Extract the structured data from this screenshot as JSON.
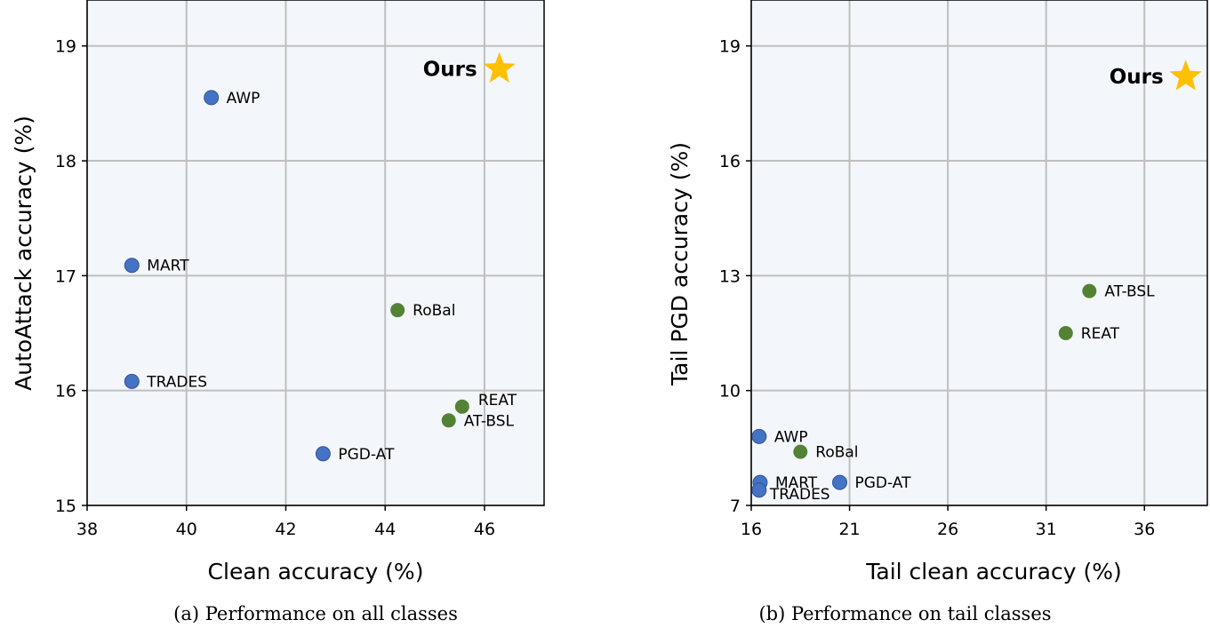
{
  "chart_data": [
    {
      "type": "scatter",
      "caption": "(a) Performance on all classes",
      "xlabel": "Clean accuracy (%)",
      "ylabel": "AutoAttack accuracy (%)",
      "xlim": [
        38,
        47.2
      ],
      "ylim": [
        15,
        19.4
      ],
      "xticks": [
        38,
        40,
        42,
        44,
        46
      ],
      "yticks": [
        15,
        16,
        17,
        18,
        19
      ],
      "grid": true,
      "points": [
        {
          "label": "AWP",
          "x": 40.5,
          "y": 18.55,
          "color": "#4472c4",
          "labelPos": "right"
        },
        {
          "label": "MART",
          "x": 38.9,
          "y": 17.09,
          "color": "#4472c4",
          "labelPos": "right"
        },
        {
          "label": "TRADES",
          "x": 38.9,
          "y": 16.08,
          "color": "#4472c4",
          "labelPos": "right"
        },
        {
          "label": "PGD-AT",
          "x": 42.75,
          "y": 15.45,
          "color": "#4472c4",
          "labelPos": "right"
        },
        {
          "label": "RoBal",
          "x": 44.25,
          "y": 16.7,
          "color": "#548235",
          "labelPos": "right"
        },
        {
          "label": "REAT",
          "x": 45.55,
          "y": 15.86,
          "color": "#548235",
          "labelPos": "upright"
        },
        {
          "label": "AT-BSL",
          "x": 45.28,
          "y": 15.74,
          "color": "#548235",
          "labelPos": "right"
        }
      ],
      "ours": {
        "label": "Ours",
        "x": 46.3,
        "y": 18.8,
        "color": "#ffc000"
      }
    },
    {
      "type": "scatter",
      "caption": "(b) Performance on tail classes",
      "xlabel": "Tail clean accuracy (%)",
      "ylabel": "Tail PGD accuracy (%)",
      "xlim": [
        16,
        39.2
      ],
      "ylim": [
        7,
        20.2
      ],
      "xticks": [
        16,
        21,
        26,
        31,
        36
      ],
      "yticks": [
        7,
        10,
        13,
        16,
        19
      ],
      "grid": true,
      "points": [
        {
          "label": "AWP",
          "x": 16.4,
          "y": 8.8,
          "color": "#4472c4",
          "labelPos": "right"
        },
        {
          "label": "MART",
          "x": 16.45,
          "y": 7.6,
          "color": "#4472c4",
          "labelPos": "right"
        },
        {
          "label": "TRADES",
          "x": 16.4,
          "y": 7.4,
          "color": "#4472c4",
          "labelPos": "rightlow"
        },
        {
          "label": "PGD-AT",
          "x": 20.5,
          "y": 7.6,
          "color": "#4472c4",
          "labelPos": "right"
        },
        {
          "label": "RoBal",
          "x": 18.5,
          "y": 8.4,
          "color": "#548235",
          "labelPos": "right"
        },
        {
          "label": "REAT",
          "x": 32.0,
          "y": 11.5,
          "color": "#548235",
          "labelPos": "right"
        },
        {
          "label": "AT-BSL",
          "x": 33.2,
          "y": 12.6,
          "color": "#548235",
          "labelPos": "right"
        }
      ],
      "ours": {
        "label": "Ours",
        "x": 38.1,
        "y": 18.2,
        "color": "#ffc000"
      }
    }
  ]
}
